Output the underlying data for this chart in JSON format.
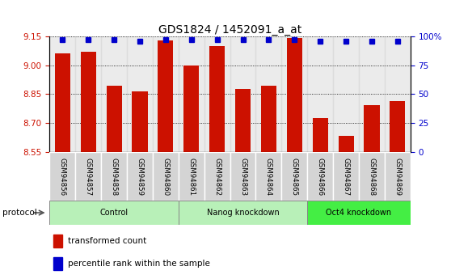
{
  "title": "GDS1824 / 1452091_a_at",
  "samples": [
    "GSM94856",
    "GSM94857",
    "GSM94858",
    "GSM94859",
    "GSM94860",
    "GSM94861",
    "GSM94862",
    "GSM94863",
    "GSM94864",
    "GSM94865",
    "GSM94866",
    "GSM94867",
    "GSM94868",
    "GSM94869"
  ],
  "red_values": [
    9.06,
    9.07,
    8.895,
    8.865,
    9.13,
    9.0,
    9.1,
    8.875,
    8.895,
    9.14,
    8.725,
    8.635,
    8.795,
    8.815
  ],
  "blue_values": [
    97,
    97,
    97,
    96,
    97,
    97,
    97,
    97,
    97,
    97,
    96,
    96,
    96,
    96
  ],
  "ylim_left": [
    8.55,
    9.15
  ],
  "ylim_right": [
    0,
    100
  ],
  "yticks_left": [
    8.55,
    8.7,
    8.85,
    9.0,
    9.15
  ],
  "yticks_right": [
    0,
    25,
    50,
    75,
    100
  ],
  "ytick_labels_right": [
    "0",
    "25",
    "50",
    "75",
    "100%"
  ],
  "bar_color": "#cc1100",
  "dot_color": "#0000cc",
  "protocol_label": "protocol",
  "legend_red": "transformed count",
  "legend_blue": "percentile rank within the sample",
  "title_fontsize": 10,
  "axis_label_color_left": "#cc1100",
  "axis_label_color_right": "#0000cc",
  "group_boundaries": [
    {
      "label": "Control",
      "start": 0,
      "end": 5,
      "color": "#b8f0b8"
    },
    {
      "label": "Nanog knockdown",
      "start": 5,
      "end": 10,
      "color": "#b8f0b8"
    },
    {
      "label": "Oct4 knockdown",
      "start": 10,
      "end": 14,
      "color": "#44ee44"
    }
  ]
}
